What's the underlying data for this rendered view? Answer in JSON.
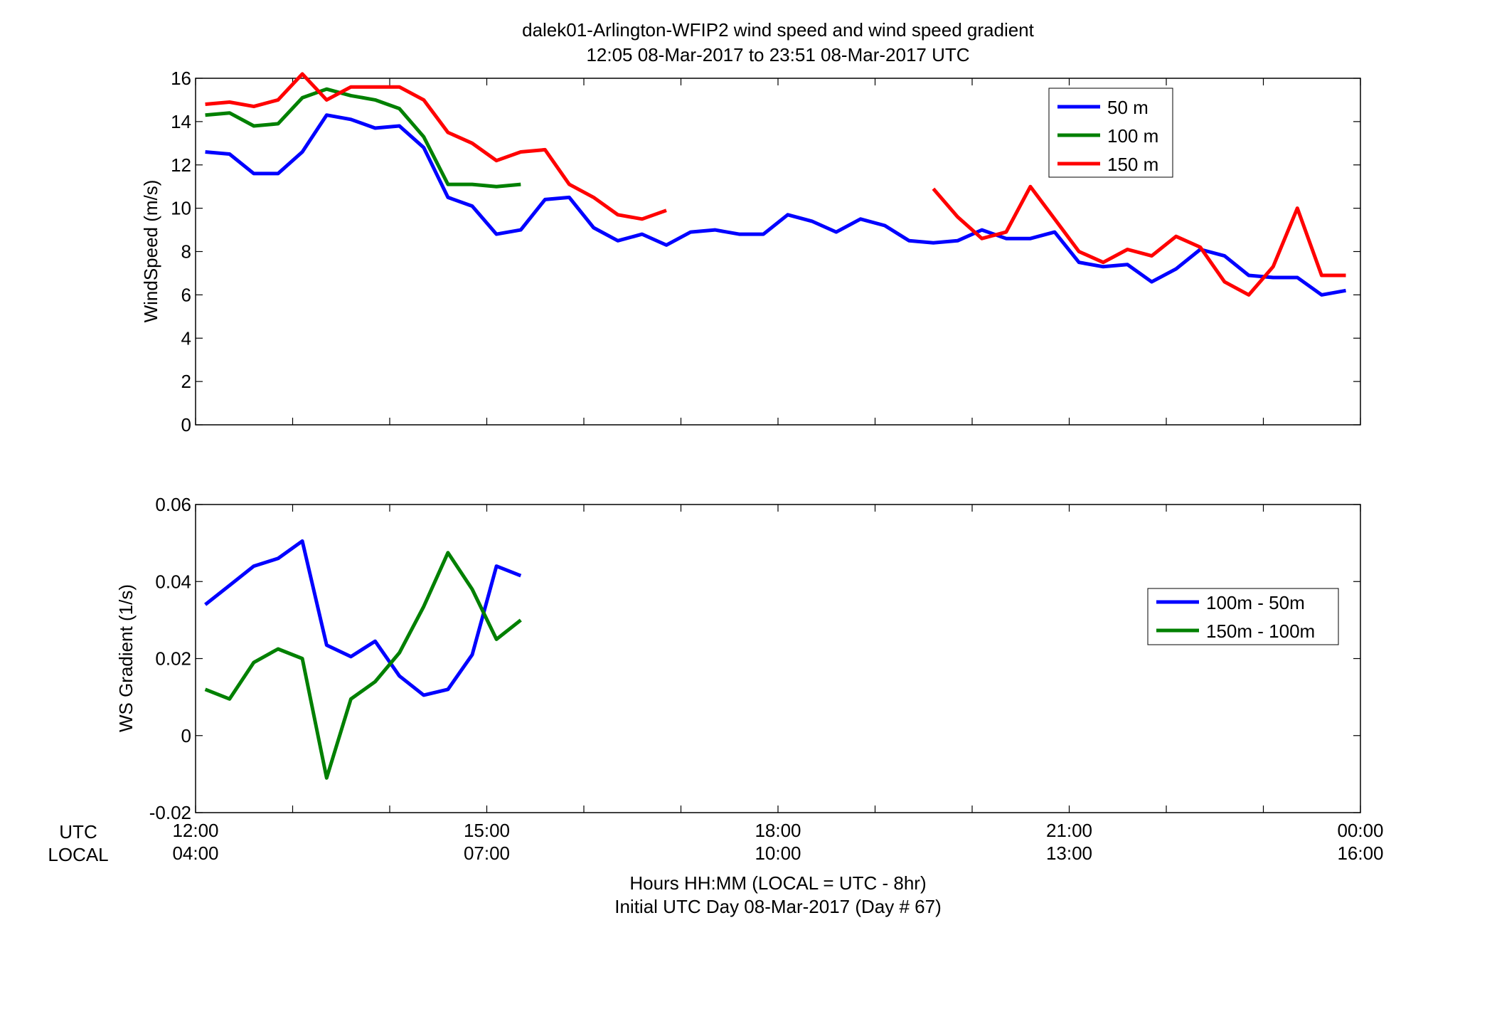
{
  "figure": {
    "title_line1": "dalek01-Arlington-WFIP2  wind speed and wind speed gradient",
    "title_line2": "12:05 08-Mar-2017 to 23:51 08-Mar-2017  UTC",
    "xlabel_line1": "Hours HH:MM  (LOCAL = UTC - 8hr)",
    "xlabel_line2": "Initial UTC Day 08-Mar-2017 (Day # 67)",
    "row_label_utc": "UTC",
    "row_label_local": "LOCAL",
    "utc_ticks": [
      "12:00",
      "15:00",
      "18:00",
      "21:00",
      "00:00"
    ],
    "local_ticks": [
      "04:00",
      "07:00",
      "10:00",
      "13:00",
      "16:00"
    ]
  },
  "colors": {
    "blue": "#0000ff",
    "green": "#008000",
    "red": "#ff0000"
  },
  "chart_data": [
    {
      "type": "line",
      "ylabel": "WindSpeed (m/s)",
      "xlim": [
        12.0,
        24.0
      ],
      "ylim": [
        0,
        16
      ],
      "yticks": [
        0,
        2,
        4,
        6,
        8,
        10,
        12,
        14,
        16
      ],
      "xticks": [
        12,
        13,
        14,
        15,
        16,
        17,
        18,
        19,
        20,
        21,
        22,
        23,
        24
      ],
      "grid": false,
      "legend_position": "top-right",
      "x": [
        12.1,
        12.35,
        12.6,
        12.85,
        13.1,
        13.35,
        13.6,
        13.85,
        14.1,
        14.35,
        14.6,
        14.85,
        15.1,
        15.35,
        15.6,
        15.85,
        16.1,
        16.35,
        16.6,
        16.85,
        17.1,
        17.35,
        17.6,
        17.85,
        18.1,
        18.35,
        18.6,
        18.85,
        19.1,
        19.35,
        19.6,
        19.85,
        20.1,
        20.35,
        20.6,
        20.85,
        21.1,
        21.35,
        21.6,
        21.85,
        22.1,
        22.35,
        22.6,
        22.85,
        23.1,
        23.35,
        23.6,
        23.85
      ],
      "series": [
        {
          "name": "50 m",
          "color": "#0000ff",
          "values": [
            12.6,
            12.5,
            11.6,
            11.6,
            12.6,
            14.3,
            14.1,
            13.7,
            13.8,
            12.8,
            10.5,
            10.1,
            8.8,
            9.0,
            10.4,
            10.5,
            9.1,
            8.5,
            8.8,
            8.3,
            8.9,
            9.0,
            8.8,
            8.8,
            9.7,
            9.4,
            8.9,
            9.5,
            9.2,
            8.5,
            8.4,
            8.5,
            9.0,
            8.6,
            8.6,
            8.9,
            7.5,
            7.3,
            7.4,
            6.6,
            7.2,
            8.1,
            7.8,
            6.9,
            6.8,
            6.8,
            6.0,
            6.2
          ]
        },
        {
          "name": "100 m",
          "color": "#008000",
          "values": [
            14.3,
            14.4,
            13.8,
            13.9,
            15.1,
            15.5,
            15.2,
            15.0,
            14.6,
            13.3,
            11.1,
            11.1,
            11.0,
            11.1,
            null,
            null,
            null,
            null,
            null,
            null,
            null,
            null,
            null,
            null,
            null,
            null,
            null,
            null,
            null,
            null,
            null,
            null,
            null,
            null,
            null,
            null,
            null,
            null,
            null,
            null,
            null,
            null,
            null,
            null,
            null,
            null,
            null,
            null
          ]
        },
        {
          "name": "150 m",
          "color": "#ff0000",
          "values": [
            14.8,
            14.9,
            14.7,
            15.0,
            16.2,
            15.0,
            15.6,
            15.6,
            15.6,
            15.0,
            13.5,
            13.0,
            12.2,
            12.6,
            12.7,
            11.1,
            10.5,
            9.7,
            9.5,
            9.9,
            null,
            null,
            null,
            null,
            null,
            null,
            null,
            null,
            null,
            null,
            10.9,
            9.6,
            8.6,
            8.9,
            11.0,
            9.5,
            8.0,
            7.5,
            8.1,
            7.8,
            8.7,
            8.2,
            6.6,
            6.0,
            7.3,
            10.0,
            6.9,
            6.9
          ]
        }
      ]
    },
    {
      "type": "line",
      "ylabel": "WS Gradient (1/s)",
      "xlim": [
        12.0,
        24.0
      ],
      "ylim": [
        -0.02,
        0.06
      ],
      "yticks": [
        -0.02,
        0,
        0.02,
        0.04,
        0.06
      ],
      "ytick_labels": [
        "-0.02",
        "0",
        "0.02",
        "0.04",
        "0.06"
      ],
      "xticks": [
        12,
        13,
        14,
        15,
        16,
        17,
        18,
        19,
        20,
        21,
        22,
        23,
        24
      ],
      "grid": false,
      "legend_position": "right",
      "x": [
        12.1,
        12.35,
        12.6,
        12.85,
        13.1,
        13.35,
        13.6,
        13.85,
        14.1,
        14.35,
        14.6,
        14.85,
        15.1,
        15.35
      ],
      "series": [
        {
          "name": "100m - 50m",
          "color": "#0000ff",
          "values": [
            0.034,
            0.039,
            0.044,
            0.046,
            0.0505,
            0.0235,
            0.0205,
            0.0245,
            0.0155,
            0.0105,
            0.012,
            0.021,
            0.044,
            0.0415
          ]
        },
        {
          "name": "150m - 100m",
          "color": "#008000",
          "values": [
            0.012,
            0.0095,
            0.019,
            0.0225,
            0.02,
            -0.011,
            0.0095,
            0.014,
            0.0215,
            0.0335,
            0.0475,
            0.038,
            0.025,
            0.03
          ]
        }
      ]
    }
  ]
}
